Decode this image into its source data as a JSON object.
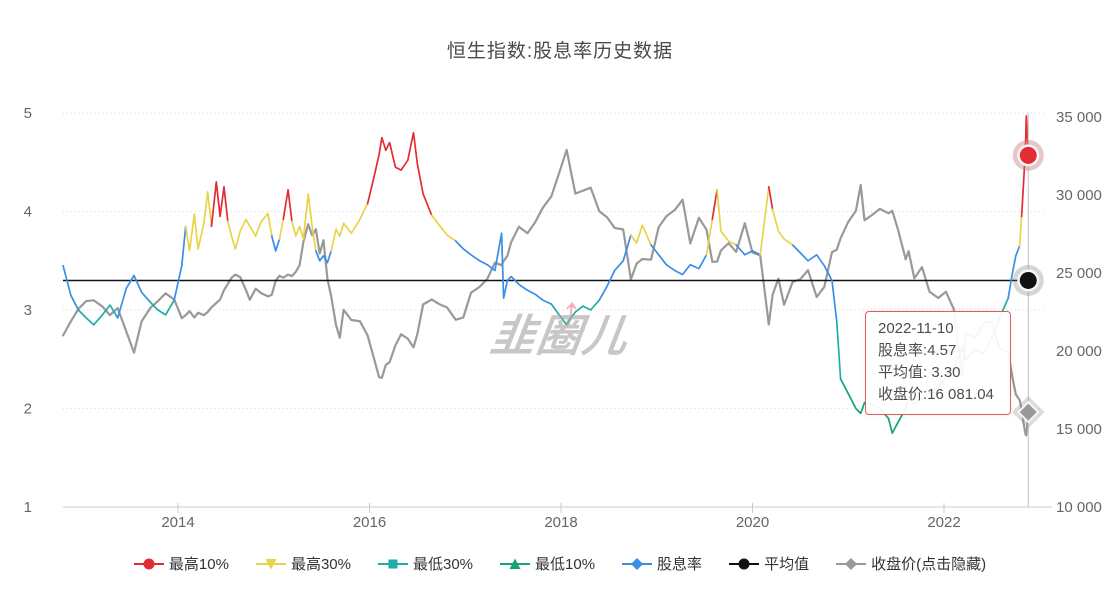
{
  "title": "恒生指数:股息率历史数据",
  "watermark": {
    "text": "韭圈儿",
    "arrow_icon": "red-up-arrow"
  },
  "tooltip": {
    "lines": [
      "2022-11-10",
      "股息率:4.57",
      "平均值: 3.30",
      "收盘价:16 081.04"
    ]
  },
  "legend": [
    {
      "id": "high10",
      "label": "最高10%",
      "symbol": "circle",
      "color_key": "high10"
    },
    {
      "id": "high30",
      "label": "最高30%",
      "symbol": "triangle-down",
      "color_key": "high30"
    },
    {
      "id": "low30",
      "label": "最低30%",
      "symbol": "square",
      "color_key": "low30"
    },
    {
      "id": "low10",
      "label": "最低10%",
      "symbol": "triangle-up",
      "color_key": "low10"
    },
    {
      "id": "yield",
      "label": "股息率",
      "symbol": "diamond",
      "color_key": "yield"
    },
    {
      "id": "average",
      "label": "平均值",
      "symbol": "circle",
      "color_key": "average"
    },
    {
      "id": "close",
      "label": "收盘价(点击隐藏)",
      "symbol": "diamond",
      "color_key": "close"
    }
  ],
  "chart_data": {
    "type": "line",
    "title": "恒生指数:股息率历史数据",
    "x_axis": {
      "tick_labels": [
        "2014",
        "2016",
        "2018",
        "2020",
        "2022"
      ],
      "tick_values": [
        2014,
        2016,
        2018,
        2020,
        2022
      ],
      "range": [
        2012.8,
        2022.95
      ]
    },
    "y_left": {
      "tick_labels": [
        "1",
        "2",
        "3",
        "4",
        "5"
      ],
      "tick_values": [
        1,
        2,
        3,
        4,
        5
      ],
      "range": [
        1,
        5
      ],
      "series": "股息率"
    },
    "y_right": {
      "tick_labels": [
        "10 000",
        "15 000",
        "20 000",
        "25 000",
        "30 000",
        "35 000"
      ],
      "tick_values": [
        10000,
        15000,
        20000,
        25000,
        30000,
        35000
      ],
      "range": [
        10000,
        35000
      ],
      "series": "收盘价"
    },
    "grid": "dotted-horizontal",
    "legend_position": "bottom-center",
    "average_value": 3.3,
    "last_point": {
      "date": "2022-11-10",
      "yield": 4.57,
      "close": 16081.04
    },
    "colors": {
      "high10": "#e12d33",
      "high30": "#e7d44a",
      "low30": "#1fada6",
      "low10": "#15a377",
      "yield": "#3a8ee6",
      "average": "#111111",
      "close": "#999999",
      "grid": "#dddddd",
      "axis": "#cccccc",
      "crosshair": "#c4c4c4",
      "tick_text": "#666666"
    },
    "yield_band_thresholds": {
      "high10": 4.05,
      "high30": 3.68,
      "low30": 3.06,
      "low10": 2.29
    },
    "points_format": [
      "year_decimal",
      "dividend_yield_pct",
      "close_price"
    ],
    "points": [
      [
        2012.8,
        3.45,
        21000
      ],
      [
        2012.88,
        3.15,
        21900
      ],
      [
        2012.96,
        3.0,
        22700
      ],
      [
        2013.04,
        2.92,
        23200
      ],
      [
        2013.12,
        2.85,
        23250
      ],
      [
        2013.21,
        2.95,
        22850
      ],
      [
        2013.29,
        3.05,
        22300
      ],
      [
        2013.37,
        2.92,
        22750
      ],
      [
        2013.46,
        3.22,
        21250
      ],
      [
        2013.54,
        3.35,
        19900
      ],
      [
        2013.62,
        3.18,
        21900
      ],
      [
        2013.71,
        3.08,
        22750
      ],
      [
        2013.79,
        3.0,
        23200
      ],
      [
        2013.87,
        2.95,
        23700
      ],
      [
        2013.96,
        3.1,
        23300
      ],
      [
        2014.04,
        3.45,
        22100
      ],
      [
        2014.08,
        3.85,
        22300
      ],
      [
        2014.12,
        3.6,
        22550
      ],
      [
        2014.17,
        3.97,
        22150
      ],
      [
        2014.21,
        3.62,
        22450
      ],
      [
        2014.27,
        3.88,
        22300
      ],
      [
        2014.31,
        4.2,
        22500
      ],
      [
        2014.35,
        3.85,
        22800
      ],
      [
        2014.4,
        4.3,
        23080
      ],
      [
        2014.44,
        3.95,
        23300
      ],
      [
        2014.48,
        4.25,
        23900
      ],
      [
        2014.52,
        3.9,
        24300
      ],
      [
        2014.56,
        3.75,
        24700
      ],
      [
        2014.6,
        3.62,
        24900
      ],
      [
        2014.65,
        3.8,
        24740
      ],
      [
        2014.71,
        3.92,
        23900
      ],
      [
        2014.75,
        3.85,
        23280
      ],
      [
        2014.81,
        3.75,
        23990
      ],
      [
        2014.87,
        3.9,
        23700
      ],
      [
        2014.94,
        3.98,
        23500
      ],
      [
        2014.98,
        3.75,
        23600
      ],
      [
        2015.02,
        3.6,
        24500
      ],
      [
        2015.06,
        3.72,
        24820
      ],
      [
        2015.1,
        3.92,
        24700
      ],
      [
        2015.15,
        4.22,
        24900
      ],
      [
        2015.19,
        3.9,
        24800
      ],
      [
        2015.23,
        3.75,
        25080
      ],
      [
        2015.27,
        3.85,
        25500
      ],
      [
        2015.31,
        3.72,
        27000
      ],
      [
        2015.36,
        4.18,
        28130
      ],
      [
        2015.4,
        3.85,
        27420
      ],
      [
        2015.44,
        3.6,
        27800
      ],
      [
        2015.48,
        3.5,
        26250
      ],
      [
        2015.52,
        3.55,
        27100
      ],
      [
        2015.56,
        3.48,
        24640
      ],
      [
        2015.6,
        3.6,
        23500
      ],
      [
        2015.65,
        3.82,
        21670
      ],
      [
        2015.69,
        3.75,
        20850
      ],
      [
        2015.73,
        3.88,
        22640
      ],
      [
        2015.81,
        3.78,
        21990
      ],
      [
        2015.9,
        3.92,
        21910
      ],
      [
        2015.98,
        4.08,
        21000
      ],
      [
        2016.04,
        4.32,
        19680
      ],
      [
        2016.1,
        4.58,
        18320
      ],
      [
        2016.13,
        4.75,
        18280
      ],
      [
        2016.17,
        4.62,
        19110
      ],
      [
        2016.21,
        4.7,
        19285
      ],
      [
        2016.27,
        4.45,
        20360
      ],
      [
        2016.33,
        4.42,
        21070
      ],
      [
        2016.4,
        4.52,
        20790
      ],
      [
        2016.46,
        4.8,
        20230
      ],
      [
        2016.5,
        4.48,
        21100
      ],
      [
        2016.56,
        4.18,
        22980
      ],
      [
        2016.65,
        3.96,
        23300
      ],
      [
        2016.73,
        3.86,
        23000
      ],
      [
        2016.81,
        3.76,
        22790
      ],
      [
        2016.9,
        3.7,
        22000
      ],
      [
        2016.98,
        3.62,
        22150
      ],
      [
        2017.06,
        3.56,
        23740
      ],
      [
        2017.15,
        3.5,
        24110
      ],
      [
        2017.23,
        3.46,
        24620
      ],
      [
        2017.31,
        3.4,
        25660
      ],
      [
        2017.38,
        3.78,
        25500
      ],
      [
        2017.4,
        3.12,
        25760
      ],
      [
        2017.44,
        3.3,
        26100
      ],
      [
        2017.48,
        3.34,
        26980
      ],
      [
        2017.56,
        3.26,
        27970
      ],
      [
        2017.65,
        3.2,
        27550
      ],
      [
        2017.73,
        3.16,
        28250
      ],
      [
        2017.81,
        3.1,
        29180
      ],
      [
        2017.9,
        3.06,
        29920
      ],
      [
        2017.98,
        2.95,
        31400
      ],
      [
        2018.06,
        2.85,
        32890
      ],
      [
        2018.1,
        2.92,
        31600
      ],
      [
        2018.15,
        2.98,
        30090
      ],
      [
        2018.23,
        3.04,
        30280
      ],
      [
        2018.31,
        3.0,
        30470
      ],
      [
        2018.4,
        3.1,
        28960
      ],
      [
        2018.48,
        3.24,
        28580
      ],
      [
        2018.56,
        3.4,
        27890
      ],
      [
        2018.65,
        3.5,
        27790
      ],
      [
        2018.73,
        3.76,
        24590
      ],
      [
        2018.79,
        3.68,
        25600
      ],
      [
        2018.85,
        3.86,
        25900
      ],
      [
        2018.94,
        3.66,
        25850
      ],
      [
        2019.02,
        3.56,
        27940
      ],
      [
        2019.1,
        3.46,
        28630
      ],
      [
        2019.19,
        3.4,
        29050
      ],
      [
        2019.27,
        3.36,
        29700
      ],
      [
        2019.35,
        3.46,
        26900
      ],
      [
        2019.44,
        3.42,
        28540
      ],
      [
        2019.52,
        3.56,
        27780
      ],
      [
        2019.58,
        3.92,
        25720
      ],
      [
        2019.63,
        4.22,
        25730
      ],
      [
        2019.67,
        3.8,
        26440
      ],
      [
        2019.75,
        3.7,
        26910
      ],
      [
        2019.83,
        3.66,
        26350
      ],
      [
        2019.92,
        3.56,
        28190
      ],
      [
        2020.0,
        3.6,
        26310
      ],
      [
        2020.08,
        3.56,
        26130
      ],
      [
        2020.17,
        4.25,
        21700
      ],
      [
        2020.21,
        4.02,
        23600
      ],
      [
        2020.27,
        3.8,
        24640
      ],
      [
        2020.33,
        3.72,
        22960
      ],
      [
        2020.42,
        3.66,
        24430
      ],
      [
        2020.5,
        3.58,
        24600
      ],
      [
        2020.58,
        3.5,
        25180
      ],
      [
        2020.67,
        3.56,
        23460
      ],
      [
        2020.75,
        3.45,
        24110
      ],
      [
        2020.83,
        3.3,
        26340
      ],
      [
        2020.88,
        2.88,
        26500
      ],
      [
        2020.92,
        2.3,
        27230
      ],
      [
        2021.0,
        2.15,
        28280
      ],
      [
        2021.08,
        2.0,
        28980
      ],
      [
        2021.13,
        1.95,
        30640
      ],
      [
        2021.17,
        2.06,
        28380
      ],
      [
        2021.25,
        2.04,
        28725
      ],
      [
        2021.33,
        2.0,
        29110
      ],
      [
        2021.42,
        1.9,
        28830
      ],
      [
        2021.46,
        1.75,
        28990
      ],
      [
        2021.52,
        1.86,
        27780
      ],
      [
        2021.6,
        2.0,
        25880
      ],
      [
        2021.63,
        2.12,
        26400
      ],
      [
        2021.69,
        2.05,
        24660
      ],
      [
        2021.77,
        2.1,
        25380
      ],
      [
        2021.85,
        2.16,
        23790
      ],
      [
        2021.94,
        2.22,
        23400
      ],
      [
        2022.02,
        2.32,
        23800
      ],
      [
        2022.1,
        2.42,
        22710
      ],
      [
        2022.19,
        2.62,
        18420
      ],
      [
        2022.23,
        2.5,
        21090
      ],
      [
        2022.33,
        2.6,
        20870
      ],
      [
        2022.42,
        2.56,
        21860
      ],
      [
        2022.5,
        2.72,
        21860
      ],
      [
        2022.58,
        2.92,
        20160
      ],
      [
        2022.67,
        3.12,
        19950
      ],
      [
        2022.71,
        3.35,
        18450
      ],
      [
        2022.75,
        3.55,
        17220
      ],
      [
        2022.79,
        3.65,
        16860
      ],
      [
        2022.81,
        3.95,
        16250
      ],
      [
        2022.83,
        4.28,
        15400
      ],
      [
        2022.85,
        4.62,
        14680
      ],
      [
        2022.86,
        4.97,
        14590
      ],
      [
        2022.87,
        4.78,
        15250
      ],
      [
        2022.88,
        4.57,
        16081.04
      ]
    ]
  }
}
